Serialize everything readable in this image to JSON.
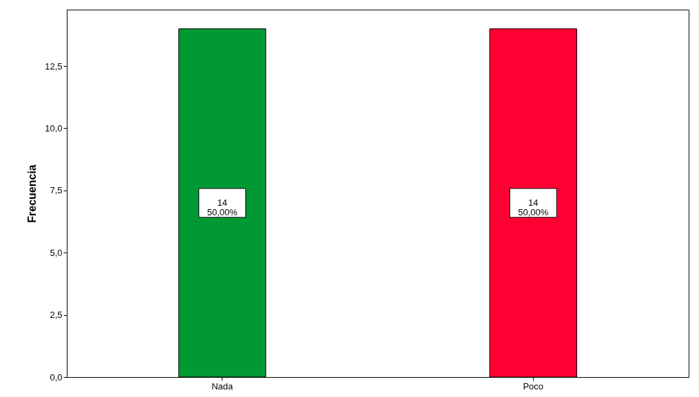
{
  "chart_data": {
    "type": "bar",
    "ylabel": "Frecuencia",
    "categories": [
      "Nada",
      "Poco"
    ],
    "values": [
      14,
      14
    ],
    "colors": [
      "#009933",
      "#ff0033"
    ],
    "value_labels": [
      "14\n50,00%",
      "14\n50,00%"
    ],
    "ylim": [
      0,
      14.77
    ],
    "yticks": [
      {
        "value": 0,
        "label": "0,0"
      },
      {
        "value": 2.5,
        "label": "2,5"
      },
      {
        "value": 5,
        "label": "5,0"
      },
      {
        "value": 7.5,
        "label": "7,5"
      },
      {
        "value": 10,
        "label": "10,0"
      },
      {
        "value": 12.5,
        "label": "12,5"
      }
    ],
    "grid": false
  }
}
